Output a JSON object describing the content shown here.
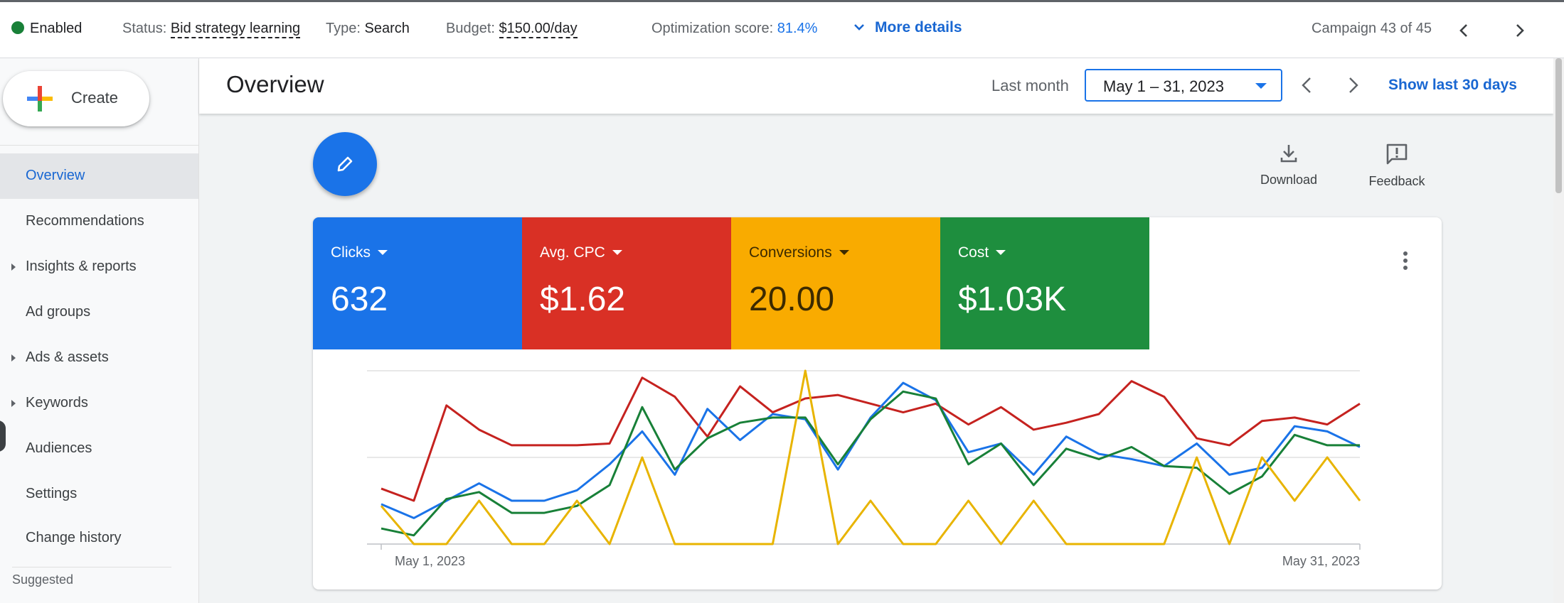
{
  "status_bar": {
    "enabled": "Enabled",
    "status_label": "Status:",
    "status_value": "Bid strategy learning",
    "type_label": "Type:",
    "type_value": "Search",
    "budget_label": "Budget:",
    "budget_value": "$150.00/day",
    "opt_label": "Optimization score:",
    "opt_value": "81.4%",
    "more_details": "More details",
    "campaign_counter": "Campaign 43 of 45"
  },
  "sidebar": {
    "create_label": "Create",
    "items": [
      {
        "label": "Overview",
        "expandable": false,
        "active": true
      },
      {
        "label": "Recommendations",
        "expandable": false,
        "active": false
      },
      {
        "label": "Insights & reports",
        "expandable": true,
        "active": false
      },
      {
        "label": "Ad groups",
        "expandable": false,
        "active": false
      },
      {
        "label": "Ads & assets",
        "expandable": true,
        "active": false
      },
      {
        "label": "Keywords",
        "expandable": true,
        "active": false
      },
      {
        "label": "Audiences",
        "expandable": false,
        "active": false
      },
      {
        "label": "Settings",
        "expandable": false,
        "active": false
      },
      {
        "label": "Change history",
        "expandable": false,
        "active": false
      }
    ],
    "suggested": "Suggested"
  },
  "header": {
    "title": "Overview",
    "last_month": "Last month",
    "date_range": "May 1 – 31, 2023",
    "show_last": "Show last 30 days"
  },
  "tools": {
    "download": "Download",
    "feedback": "Feedback"
  },
  "metrics": [
    {
      "name": "Clicks",
      "value": "632",
      "color": "#1a73e8"
    },
    {
      "name": "Avg. CPC",
      "value": "$1.62",
      "color": "#d93025"
    },
    {
      "name": "Conversions",
      "value": "20.00",
      "color": "#f9ab00"
    },
    {
      "name": "Cost",
      "value": "$1.03K",
      "color": "#1e8e3e"
    }
  ],
  "chart_data": {
    "type": "line",
    "x_start_label": "May 1, 2023",
    "x_end_label": "May 31, 2023",
    "x": [
      1,
      2,
      3,
      4,
      5,
      6,
      7,
      8,
      9,
      10,
      11,
      12,
      13,
      14,
      15,
      16,
      17,
      18,
      19,
      20,
      21,
      22,
      23,
      24,
      25,
      26,
      27,
      28,
      29,
      30,
      31
    ],
    "grid": true,
    "y_normalized": true,
    "series": [
      {
        "metric": "Avg. CPC",
        "color": "#c5221f",
        "values": [
          0.32,
          0.25,
          0.8,
          0.66,
          0.57,
          0.57,
          0.57,
          0.58,
          0.96,
          0.85,
          0.62,
          0.91,
          0.76,
          0.84,
          0.86,
          0.81,
          0.76,
          0.81,
          0.69,
          0.79,
          0.66,
          0.7,
          0.75,
          0.94,
          0.85,
          0.61,
          0.57,
          0.71,
          0.73,
          0.69,
          0.81
        ]
      },
      {
        "metric": "Clicks",
        "color": "#1a73e8",
        "values": [
          0.23,
          0.15,
          0.25,
          0.35,
          0.25,
          0.25,
          0.31,
          0.46,
          0.65,
          0.4,
          0.78,
          0.6,
          0.75,
          0.72,
          0.43,
          0.73,
          0.93,
          0.83,
          0.53,
          0.58,
          0.4,
          0.62,
          0.52,
          0.49,
          0.45,
          0.58,
          0.4,
          0.44,
          0.68,
          0.65,
          0.56
        ]
      },
      {
        "metric": "Cost",
        "color": "#188038",
        "values": [
          0.09,
          0.05,
          0.26,
          0.3,
          0.18,
          0.18,
          0.22,
          0.34,
          0.79,
          0.43,
          0.61,
          0.7,
          0.73,
          0.73,
          0.46,
          0.72,
          0.88,
          0.84,
          0.46,
          0.58,
          0.34,
          0.55,
          0.49,
          0.56,
          0.45,
          0.44,
          0.29,
          0.39,
          0.63,
          0.57,
          0.57
        ]
      },
      {
        "metric": "Conversions",
        "color": "#e8b400",
        "values": [
          0.22,
          0.0,
          0.0,
          0.25,
          0.0,
          0.0,
          0.25,
          0.0,
          0.5,
          0.0,
          0.0,
          0.0,
          0.0,
          1.0,
          0.0,
          0.25,
          0.0,
          0.0,
          0.25,
          0.0,
          0.25,
          0.0,
          0.0,
          0.0,
          0.0,
          0.5,
          0.0,
          0.5,
          0.25,
          0.5,
          0.25
        ]
      }
    ]
  }
}
